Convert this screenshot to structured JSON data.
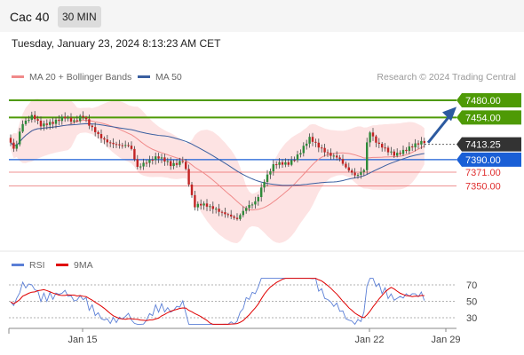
{
  "header": {
    "symbol": "Cac 40",
    "timeframe": "30 MIN"
  },
  "datetime": "Tuesday, January 23, 2024 8:13:23 AM CET",
  "legend": [
    {
      "label": "MA 20 + Bollinger Bands",
      "color": "#f08a8a"
    },
    {
      "label": "MA 50",
      "color": "#3a5fa0"
    }
  ],
  "credit": "Research © 2024 Trading Central",
  "rsi_legend": [
    {
      "label": "RSI",
      "color": "#5b7fd6"
    },
    {
      "label": "9MA",
      "color": "#e00000"
    }
  ],
  "chart_data": {
    "type": "candlestick",
    "ylim": [
      7230,
      7500
    ],
    "levels": [
      {
        "label": "7480.00",
        "value": 7480,
        "style": "resistance",
        "color": "#4e9a06"
      },
      {
        "label": "7454.00",
        "value": 7454,
        "style": "resistance",
        "color": "#4e9a06"
      },
      {
        "label": "7413.25",
        "value": 7413.25,
        "style": "last",
        "color": "#333333"
      },
      {
        "label": "7390.00",
        "value": 7390,
        "style": "pivot",
        "color": "#1a5fd6"
      },
      {
        "label": "7371.00",
        "value": 7371,
        "style": "support",
        "color": "#e03030"
      },
      {
        "label": "7350.00",
        "value": 7350,
        "style": "support",
        "color": "#e03030"
      }
    ],
    "x_ticks": [
      "Jan 15",
      "Jan 22",
      "Jan 29"
    ],
    "rsi": {
      "ticks": [
        70,
        50,
        30
      ],
      "ylim": [
        15,
        85
      ]
    },
    "forecast_arrow": {
      "from": 7413,
      "to": 7470
    }
  }
}
